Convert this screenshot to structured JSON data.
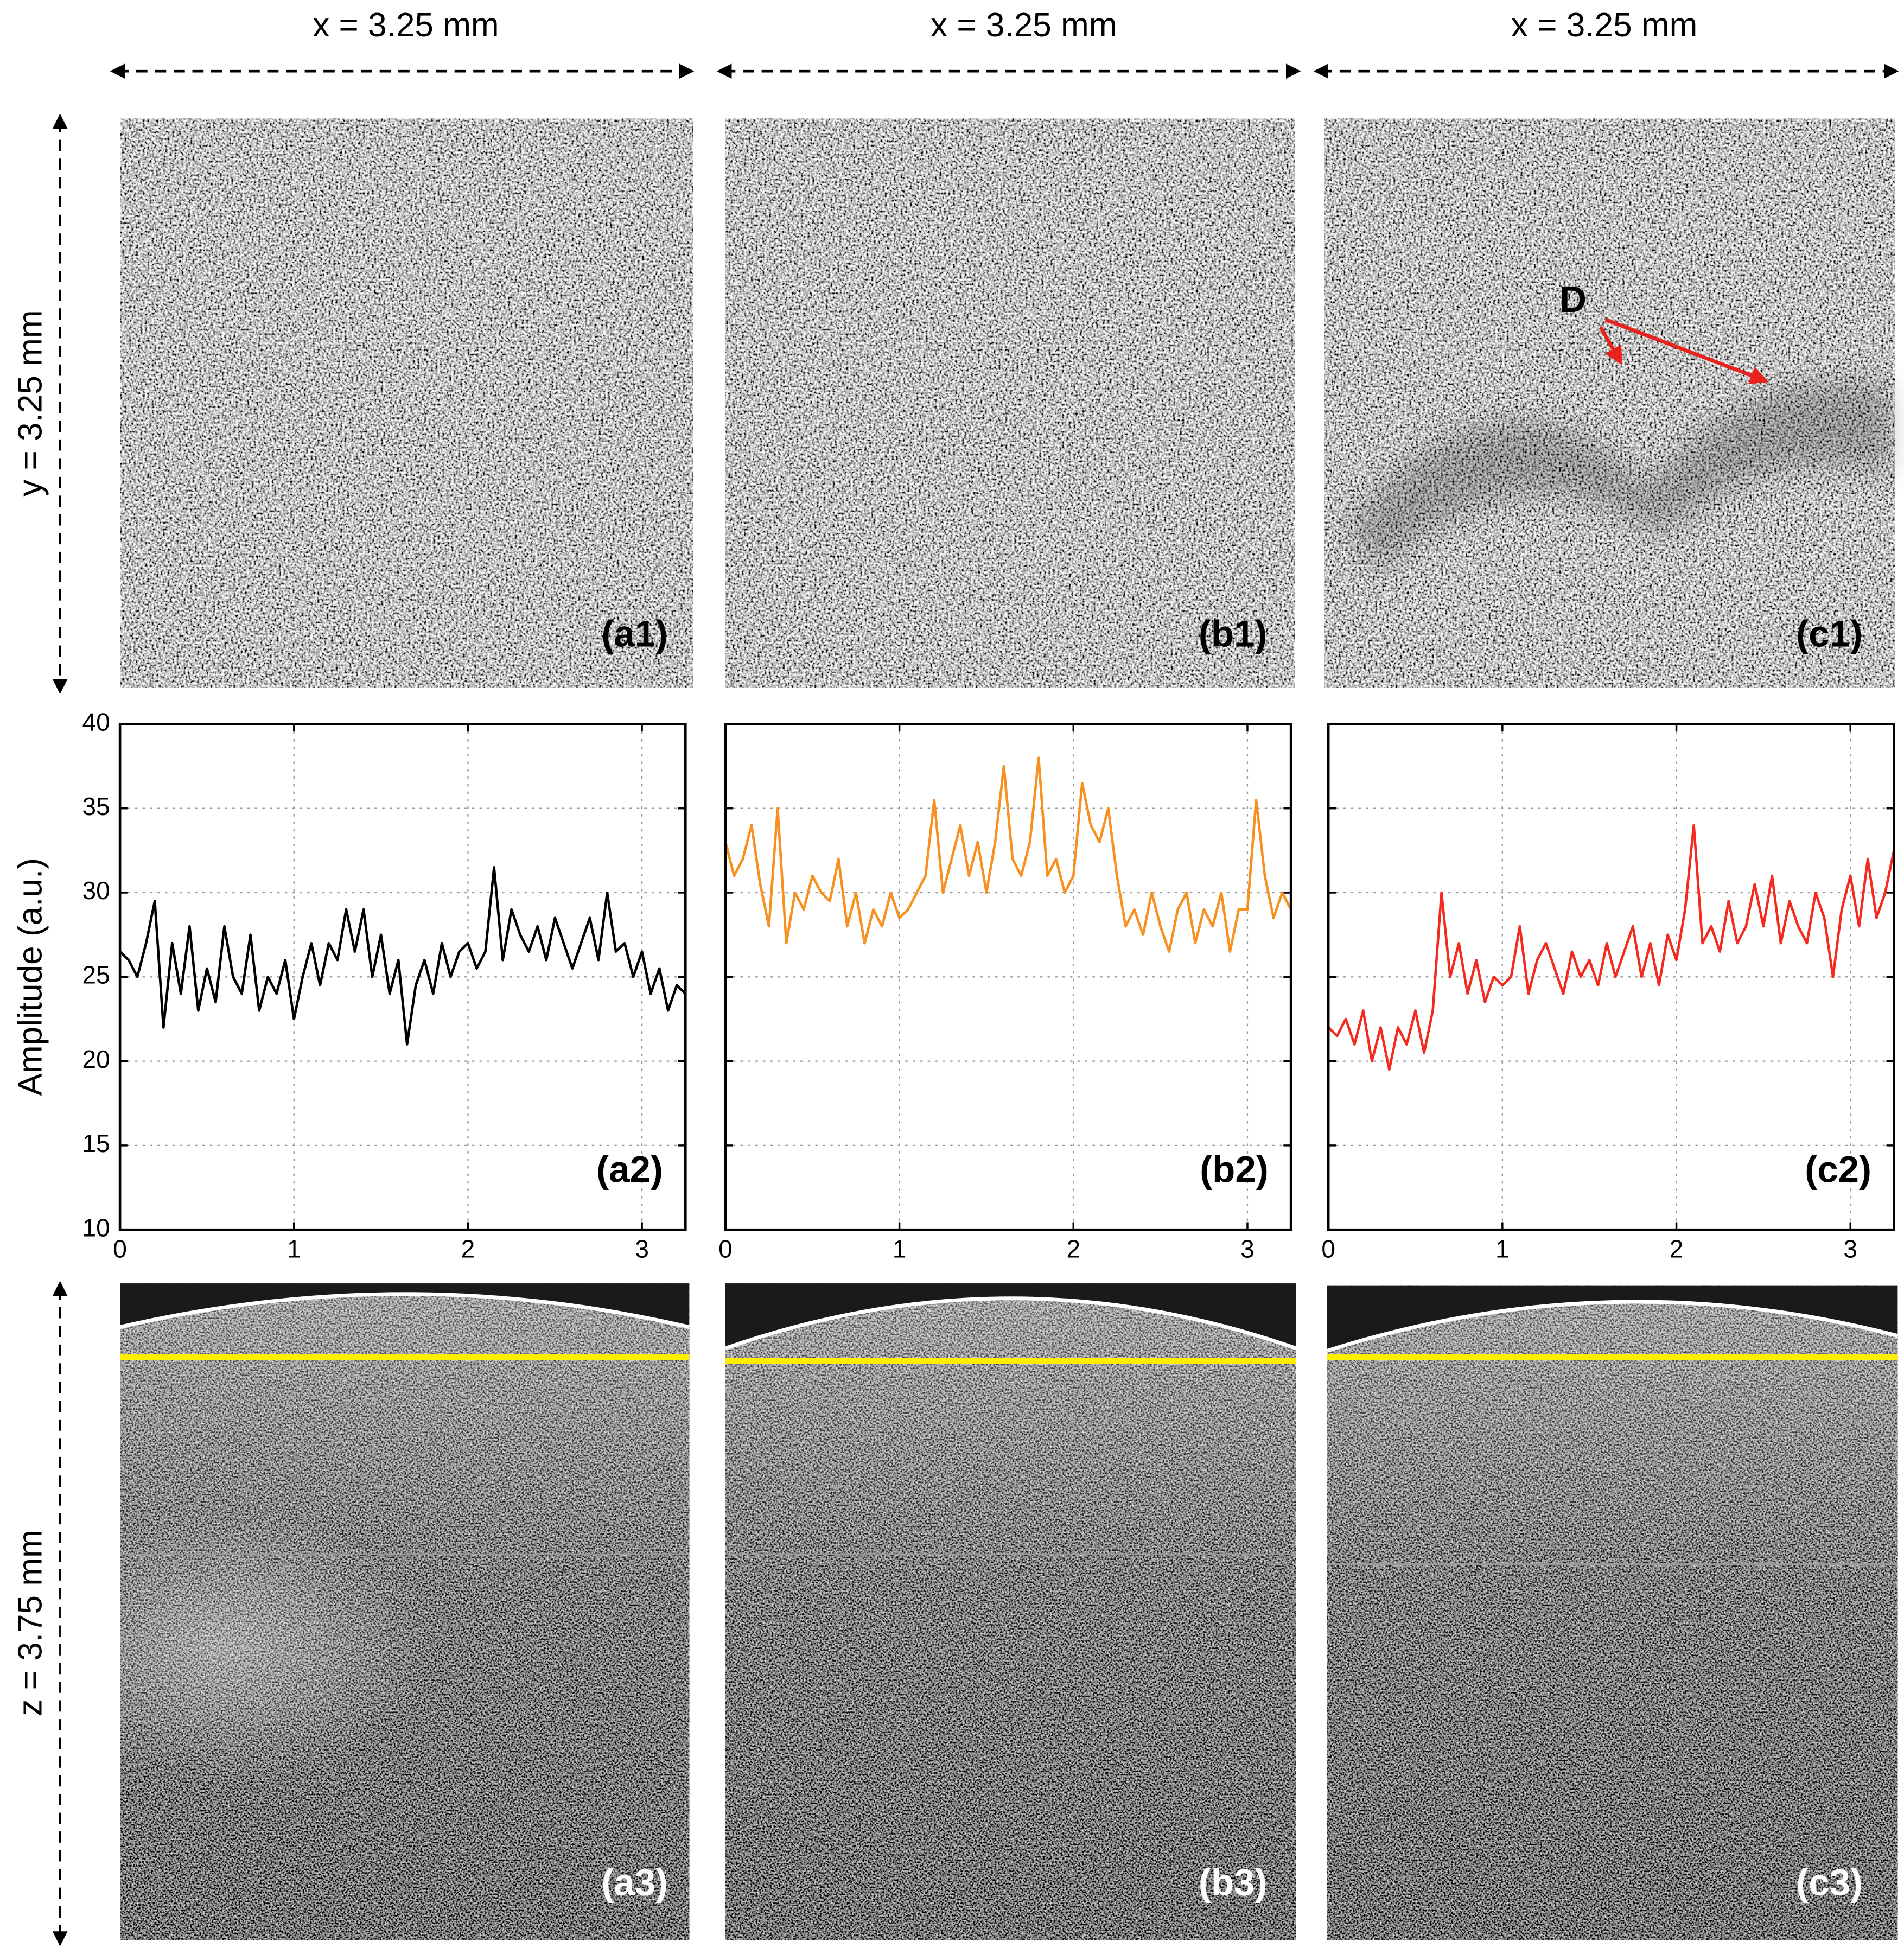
{
  "figure": {
    "column_labels": [
      "x = 3.25 mm",
      "x = 3.25 mm",
      "x = 3.25 mm"
    ],
    "row_labels": {
      "y": "y = 3.25 mm",
      "z": "z = 3.75 mm"
    },
    "image_labels": [
      "(a1)",
      "(b1)",
      "(c1)",
      "(a3)",
      "(b3)",
      "(c3)"
    ],
    "marker": "D"
  },
  "chart_data": [
    {
      "type": "line",
      "annotation": "(a2)",
      "ylabel": "Amplitude (a.u.)",
      "color": "#000000",
      "x": [
        0,
        0.05,
        0.1,
        0.15,
        0.2,
        0.25,
        0.3,
        0.35,
        0.4,
        0.45,
        0.5,
        0.55,
        0.6,
        0.65,
        0.7,
        0.75,
        0.8,
        0.85,
        0.9,
        0.95,
        1,
        1.05,
        1.1,
        1.15,
        1.2,
        1.25,
        1.3,
        1.35,
        1.4,
        1.45,
        1.5,
        1.55,
        1.6,
        1.65,
        1.7,
        1.75,
        1.8,
        1.85,
        1.9,
        1.95,
        2,
        2.05,
        2.1,
        2.15,
        2.2,
        2.25,
        2.3,
        2.35,
        2.4,
        2.45,
        2.5,
        2.55,
        2.6,
        2.65,
        2.7,
        2.75,
        2.8,
        2.85,
        2.9,
        2.95,
        3,
        3.05,
        3.1,
        3.15,
        3.2,
        3.25
      ],
      "values": [
        26.5,
        26,
        25,
        27,
        29.5,
        22,
        27,
        24,
        28,
        23,
        25.5,
        23.5,
        28,
        25,
        24,
        27.5,
        23,
        25,
        24,
        26,
        22.5,
        25,
        27,
        24.5,
        27,
        26,
        29,
        26.5,
        29,
        25,
        27.5,
        24,
        26,
        21,
        24.5,
        26,
        24,
        27,
        25,
        26.5,
        27,
        25.5,
        26.5,
        31.5,
        26,
        29,
        27.5,
        26.5,
        28,
        26,
        28.5,
        27,
        25.5,
        27,
        28.5,
        26,
        30,
        26.5,
        27,
        25,
        26.5,
        24,
        25.5,
        23,
        24.5,
        24
      ],
      "xlim": [
        0,
        3.25
      ],
      "ylim": [
        10,
        40
      ],
      "xticks": [
        0,
        1,
        2,
        3
      ],
      "yticks": [
        10,
        15,
        20,
        25,
        30,
        35,
        40
      ],
      "grid": true,
      "show_ytick_labels": true
    },
    {
      "type": "line",
      "annotation": "(b2)",
      "color": "#f7901e",
      "x": [
        0,
        0.05,
        0.1,
        0.15,
        0.2,
        0.25,
        0.3,
        0.35,
        0.4,
        0.45,
        0.5,
        0.55,
        0.6,
        0.65,
        0.7,
        0.75,
        0.8,
        0.85,
        0.9,
        0.95,
        1,
        1.05,
        1.1,
        1.15,
        1.2,
        1.25,
        1.3,
        1.35,
        1.4,
        1.45,
        1.5,
        1.55,
        1.6,
        1.65,
        1.7,
        1.75,
        1.8,
        1.85,
        1.9,
        1.95,
        2,
        2.05,
        2.1,
        2.15,
        2.2,
        2.25,
        2.3,
        2.35,
        2.4,
        2.45,
        2.5,
        2.55,
        2.6,
        2.65,
        2.7,
        2.75,
        2.8,
        2.85,
        2.9,
        2.95,
        3,
        3.05,
        3.1,
        3.15,
        3.2,
        3.25
      ],
      "values": [
        33,
        31,
        32,
        34,
        30.5,
        28,
        35,
        27,
        30,
        29,
        31,
        30,
        29.5,
        32,
        28,
        30,
        27,
        29,
        28,
        30,
        28.5,
        29,
        30,
        31,
        35.5,
        30,
        32,
        34,
        31,
        33,
        30,
        33,
        37.5,
        32,
        31,
        33,
        38,
        31,
        32,
        30,
        31,
        36.5,
        34,
        33,
        35,
        31,
        28,
        29,
        27.5,
        30,
        28,
        26.5,
        29,
        30,
        27,
        29,
        28,
        30,
        26.5,
        29,
        29,
        35.5,
        31,
        28.5,
        30,
        29
      ],
      "xlim": [
        0,
        3.25
      ],
      "ylim": [
        10,
        40
      ],
      "xticks": [
        0,
        1,
        2,
        3
      ],
      "yticks": [
        10,
        15,
        20,
        25,
        30,
        35,
        40
      ],
      "grid": true,
      "show_ytick_labels": false
    },
    {
      "type": "line",
      "annotation": "(c2)",
      "color": "#f52a1e",
      "x": [
        0,
        0.05,
        0.1,
        0.15,
        0.2,
        0.25,
        0.3,
        0.35,
        0.4,
        0.45,
        0.5,
        0.55,
        0.6,
        0.65,
        0.7,
        0.75,
        0.8,
        0.85,
        0.9,
        0.95,
        1,
        1.05,
        1.1,
        1.15,
        1.2,
        1.25,
        1.3,
        1.35,
        1.4,
        1.45,
        1.5,
        1.55,
        1.6,
        1.65,
        1.7,
        1.75,
        1.8,
        1.85,
        1.9,
        1.95,
        2,
        2.05,
        2.1,
        2.15,
        2.2,
        2.25,
        2.3,
        2.35,
        2.4,
        2.45,
        2.5,
        2.55,
        2.6,
        2.65,
        2.7,
        2.75,
        2.8,
        2.85,
        2.9,
        2.95,
        3,
        3.05,
        3.1,
        3.15,
        3.2,
        3.25
      ],
      "values": [
        22,
        21.5,
        22.5,
        21,
        23,
        20,
        22,
        19.5,
        22,
        21,
        23,
        20.5,
        23,
        30,
        25,
        27,
        24,
        26,
        23.5,
        25,
        24.5,
        25,
        28,
        24,
        26,
        27,
        25.5,
        24,
        26.5,
        25,
        26,
        24.5,
        27,
        25,
        26.5,
        28,
        25,
        27,
        24.5,
        27.5,
        26,
        29,
        34,
        27,
        28,
        26.5,
        29.5,
        27,
        28,
        30.5,
        28,
        31,
        27,
        29.5,
        28,
        27,
        30,
        28.5,
        25,
        29,
        31,
        28,
        32,
        28.5,
        30,
        32.5
      ],
      "xlim": [
        0,
        3.25
      ],
      "ylim": [
        10,
        40
      ],
      "xticks": [
        0,
        1,
        2,
        3
      ],
      "yticks": [
        10,
        15,
        20,
        25,
        30,
        35,
        40
      ],
      "grid": true,
      "show_ytick_labels": false
    }
  ]
}
